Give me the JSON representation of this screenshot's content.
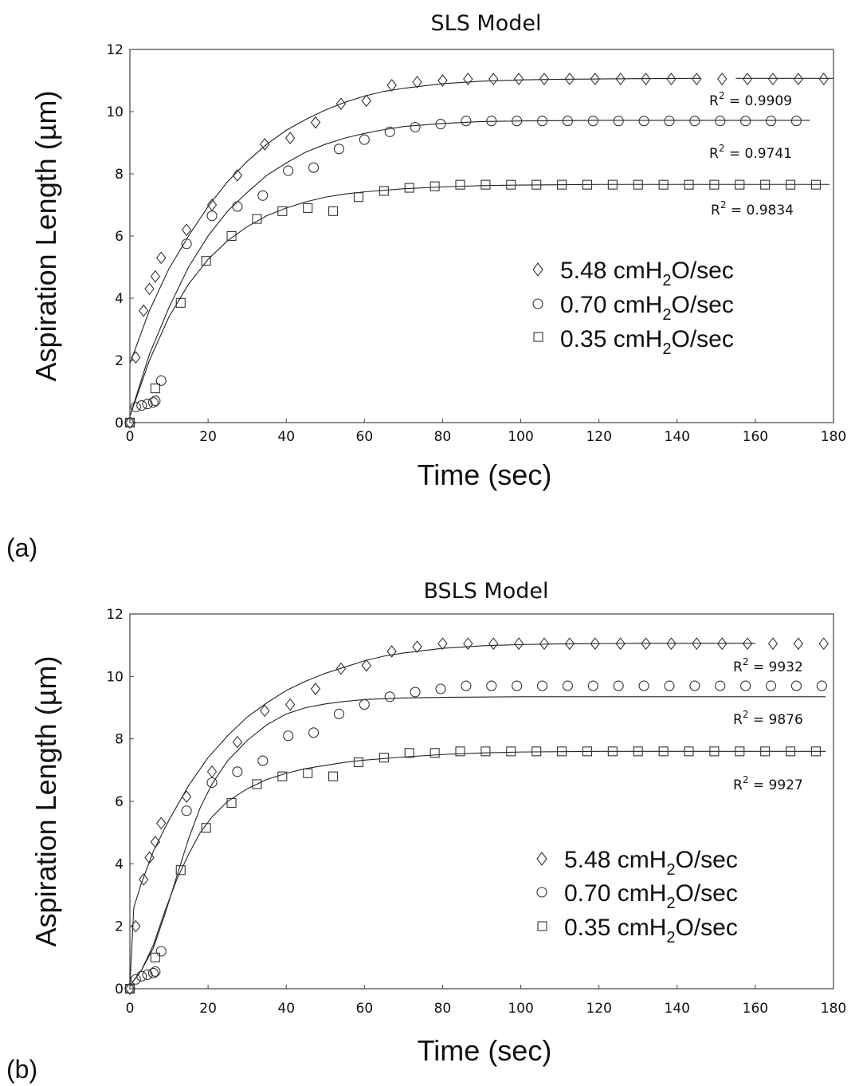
{
  "chart_data": [
    {
      "type": "scatter",
      "panel_label": "(a)",
      "title": "SLS Model",
      "xlabel": "Time (sec)",
      "ylabel": "Aspiration Length (µm)",
      "xlim": [
        0,
        180
      ],
      "ylim": [
        0,
        12
      ],
      "xticks": [
        "0",
        "20",
        "40",
        "60",
        "80",
        "100",
        "120",
        "140",
        "160",
        "180"
      ],
      "yticks": [
        "0",
        "2",
        "4",
        "6",
        "8",
        "10",
        "12"
      ],
      "series": [
        {
          "name": "5.48 cmH2O/sec",
          "name_parts": {
            "pre": "5.48 cmH",
            "sub": "2",
            "post": "O/sec"
          },
          "marker": "diamond",
          "x": [
            0,
            1.5,
            3.5,
            5,
            6.5,
            8,
            14.5,
            21,
            27.5,
            34.5,
            41,
            47.5,
            54,
            60.5,
            67,
            73.5,
            80,
            86.5,
            93,
            99.5,
            106,
            112.5,
            119,
            125.5,
            132,
            138.5,
            145,
            151.5,
            158,
            164.5,
            171,
            177.5
          ],
          "y": [
            0,
            2.1,
            3.6,
            4.3,
            4.7,
            5.3,
            6.2,
            7.0,
            7.95,
            8.95,
            9.15,
            9.65,
            10.25,
            10.35,
            10.85,
            10.95,
            11.0,
            11.05,
            11.05,
            11.05,
            11.05,
            11.05,
            11.05,
            11.05,
            11.05,
            11.05,
            11.05,
            11.05,
            11.05,
            11.05,
            11.05,
            11.05
          ],
          "fit_x": [
            0,
            5,
            10,
            15,
            20,
            25,
            30,
            35,
            40,
            45,
            50,
            55,
            60,
            65,
            70,
            80,
            90,
            100,
            110,
            120,
            130,
            145,
            155,
            160,
            170,
            180
          ],
          "fit_y": [
            1.9,
            3.6,
            4.95,
            6.0,
            6.95,
            7.75,
            8.4,
            8.95,
            9.4,
            9.75,
            10.05,
            10.3,
            10.5,
            10.65,
            10.75,
            10.9,
            10.98,
            11.02,
            11.04,
            11.05,
            11.06,
            11.07,
            11.07,
            11.07,
            11.07,
            11.07
          ],
          "fit_gap": [
            146,
            155
          ],
          "r2": {
            "pre": "R",
            "sup": "2",
            "post": " = 0.9909"
          }
        },
        {
          "name": "0.70 cmH2O/sec",
          "name_parts": {
            "pre": "0.70 cmH",
            "sub": "2",
            "post": "O/sec"
          },
          "marker": "circle",
          "x": [
            0,
            1.5,
            3,
            4.5,
            6,
            6.5,
            8,
            14.5,
            21,
            27.5,
            34,
            40.5,
            47,
            53.5,
            60,
            66.5,
            73,
            79.5,
            86,
            92.5,
            99,
            105.5,
            112,
            118.5,
            125,
            131.5,
            138,
            144.5,
            151,
            157.5,
            164,
            170.5
          ],
          "y": [
            0,
            0.5,
            0.55,
            0.6,
            0.65,
            0.7,
            1.35,
            5.75,
            6.65,
            6.95,
            7.3,
            8.1,
            8.2,
            8.8,
            9.1,
            9.35,
            9.5,
            9.6,
            9.7,
            9.7,
            9.7,
            9.7,
            9.7,
            9.7,
            9.7,
            9.7,
            9.7,
            9.7,
            9.7,
            9.7,
            9.7,
            9.7
          ],
          "fit_x": [
            0,
            5,
            10,
            15,
            20,
            25,
            30,
            35,
            40,
            45,
            50,
            55,
            60,
            65,
            70,
            80,
            90,
            100,
            110,
            120,
            130,
            140,
            150,
            160,
            170,
            174
          ],
          "fit_y": [
            0.2,
            2.2,
            3.7,
            5.0,
            6.0,
            6.8,
            7.4,
            7.95,
            8.35,
            8.7,
            8.95,
            9.15,
            9.3,
            9.42,
            9.52,
            9.62,
            9.68,
            9.7,
            9.71,
            9.72,
            9.72,
            9.72,
            9.72,
            9.72,
            9.72,
            9.72
          ],
          "r2": {
            "pre": "R",
            "sup": "2",
            "post": " = 0.9741"
          }
        },
        {
          "name": "0.35 cmH2O/sec",
          "name_parts": {
            "pre": "0.35 cmH",
            "sub": "2",
            "post": "O/sec"
          },
          "marker": "square",
          "x": [
            0,
            6.5,
            13,
            19.5,
            26,
            32.5,
            39,
            45.5,
            52,
            58.5,
            65,
            71.5,
            78,
            84.5,
            91,
            97.5,
            104,
            110.5,
            117,
            123.5,
            130,
            136.5,
            143,
            149.5,
            156,
            162.5,
            169,
            175.5
          ],
          "y": [
            0,
            1.1,
            3.85,
            5.2,
            6.0,
            6.55,
            6.8,
            6.9,
            6.8,
            7.25,
            7.45,
            7.55,
            7.6,
            7.65,
            7.65,
            7.65,
            7.65,
            7.65,
            7.65,
            7.65,
            7.65,
            7.65,
            7.65,
            7.65,
            7.65,
            7.65,
            7.65,
            7.65
          ],
          "fit_x": [
            0,
            5,
            10,
            15,
            20,
            25,
            30,
            35,
            40,
            45,
            50,
            55,
            60,
            70,
            80,
            90,
            100,
            110,
            120,
            130,
            140,
            150,
            160,
            170,
            179
          ],
          "fit_y": [
            0.2,
            2.0,
            3.4,
            4.45,
            5.25,
            5.85,
            6.3,
            6.65,
            6.9,
            7.1,
            7.25,
            7.35,
            7.42,
            7.52,
            7.58,
            7.62,
            7.64,
            7.65,
            7.66,
            7.66,
            7.66,
            7.66,
            7.66,
            7.66,
            7.66
          ],
          "r2": {
            "pre": "R",
            "sup": "2",
            "post": " = 0.9834"
          }
        }
      ]
    },
    {
      "type": "scatter",
      "panel_label": "(b)",
      "title": "BSLS Model",
      "xlabel": "Time (sec)",
      "ylabel": "Aspiration Length (µm)",
      "xlim": [
        0,
        180
      ],
      "ylim": [
        0,
        12
      ],
      "xticks": [
        "0",
        "20",
        "40",
        "60",
        "80",
        "100",
        "120",
        "140",
        "160",
        "180"
      ],
      "yticks": [
        "0",
        "2",
        "4",
        "6",
        "8",
        "10",
        "12"
      ],
      "series": [
        {
          "name": "5.48 cmH2O/sec",
          "name_parts": {
            "pre": "5.48 cmH",
            "sub": "2",
            "post": "O/sec"
          },
          "marker": "diamond",
          "x": [
            0,
            1.5,
            3.5,
            5,
            6.5,
            8,
            14.5,
            21,
            27.5,
            34.5,
            41,
            47.5,
            54,
            60.5,
            67,
            73.5,
            80,
            86.5,
            93,
            99.5,
            106,
            112.5,
            119,
            125.5,
            132,
            138.5,
            145,
            151.5,
            158,
            164.5,
            171,
            177.5
          ],
          "y": [
            0,
            2.0,
            3.5,
            4.2,
            4.7,
            5.3,
            6.15,
            6.95,
            7.9,
            8.9,
            9.1,
            9.6,
            10.25,
            10.35,
            10.8,
            10.95,
            11.05,
            11.05,
            11.05,
            11.05,
            11.05,
            11.05,
            11.05,
            11.05,
            11.05,
            11.05,
            11.05,
            11.05,
            11.05,
            11.05,
            11.05,
            11.05
          ],
          "fit_x": [
            0,
            1,
            3,
            6,
            10,
            15,
            20,
            25,
            30,
            35,
            40,
            45,
            50,
            55,
            60,
            65,
            70,
            80,
            90,
            100,
            110,
            120,
            130,
            140,
            150,
            160
          ],
          "fit_y": [
            0.1,
            2.6,
            3.4,
            4.4,
            5.4,
            6.5,
            7.4,
            8.1,
            8.7,
            9.15,
            9.55,
            9.85,
            10.1,
            10.3,
            10.5,
            10.65,
            10.75,
            10.9,
            10.98,
            11.02,
            11.04,
            11.05,
            11.06,
            11.06,
            11.06,
            11.06
          ],
          "r2": {
            "pre": "R",
            "sup": "2",
            "post": " = 9932"
          }
        },
        {
          "name": "0.70 cmH2O/sec",
          "name_parts": {
            "pre": "0.70 cmH",
            "sub": "2",
            "post": "O/sec"
          },
          "marker": "circle",
          "x": [
            0,
            1.5,
            3,
            4.5,
            6,
            6.5,
            8,
            14.5,
            21,
            27.5,
            34,
            40.5,
            47,
            53.5,
            60,
            66.5,
            73,
            79.5,
            86,
            92.5,
            99,
            105.5,
            112,
            118.5,
            125,
            131.5,
            138,
            144.5,
            151,
            157.5,
            164,
            170.5,
            177
          ],
          "y": [
            0,
            0.3,
            0.4,
            0.45,
            0.5,
            0.55,
            1.2,
            5.7,
            6.6,
            6.95,
            7.3,
            8.1,
            8.2,
            8.8,
            9.1,
            9.35,
            9.5,
            9.6,
            9.7,
            9.7,
            9.7,
            9.7,
            9.7,
            9.7,
            9.7,
            9.7,
            9.7,
            9.7,
            9.7,
            9.7,
            9.7,
            9.7,
            9.7
          ],
          "fit_x": [
            0,
            3,
            6,
            9,
            12,
            15,
            18,
            21,
            25,
            30,
            35,
            40,
            45,
            50,
            55,
            60,
            70,
            80,
            90,
            100,
            120,
            140,
            160,
            178
          ],
          "fit_y": [
            0.1,
            0.6,
            1.3,
            2.4,
            3.6,
            4.8,
            5.8,
            6.55,
            7.3,
            7.95,
            8.45,
            8.8,
            9.0,
            9.12,
            9.2,
            9.26,
            9.31,
            9.33,
            9.34,
            9.35,
            9.35,
            9.35,
            9.35,
            9.35
          ],
          "r2": {
            "pre": "R",
            "sup": "2",
            "post": " = 9876"
          }
        },
        {
          "name": "0.35 cmH2O/sec",
          "name_parts": {
            "pre": "0.35 cmH",
            "sub": "2",
            "post": "O/sec"
          },
          "marker": "square",
          "x": [
            0,
            6.5,
            13,
            19.5,
            26,
            32.5,
            39,
            45.5,
            52,
            58.5,
            65,
            71.5,
            78,
            84.5,
            91,
            97.5,
            104,
            110.5,
            117,
            123.5,
            130,
            136.5,
            143,
            149.5,
            156,
            162.5,
            169,
            175.5
          ],
          "y": [
            0,
            1.0,
            3.8,
            5.15,
            5.95,
            6.55,
            6.8,
            6.9,
            6.8,
            7.25,
            7.4,
            7.55,
            7.55,
            7.6,
            7.6,
            7.6,
            7.6,
            7.6,
            7.6,
            7.6,
            7.6,
            7.6,
            7.6,
            7.6,
            7.6,
            7.6,
            7.6,
            7.6
          ],
          "fit_x": [
            0,
            3,
            6,
            9,
            12,
            15,
            18,
            21,
            25,
            30,
            35,
            40,
            45,
            50,
            55,
            60,
            70,
            80,
            90,
            100,
            120,
            140,
            160,
            178
          ],
          "fit_y": [
            0.1,
            0.6,
            1.4,
            2.5,
            3.5,
            4.3,
            5.0,
            5.5,
            6.0,
            6.4,
            6.7,
            6.9,
            7.05,
            7.15,
            7.25,
            7.32,
            7.42,
            7.5,
            7.55,
            7.58,
            7.6,
            7.6,
            7.6,
            7.6
          ],
          "r2": {
            "pre": "R",
            "sup": "2",
            "post": " = 9927"
          }
        }
      ]
    }
  ]
}
